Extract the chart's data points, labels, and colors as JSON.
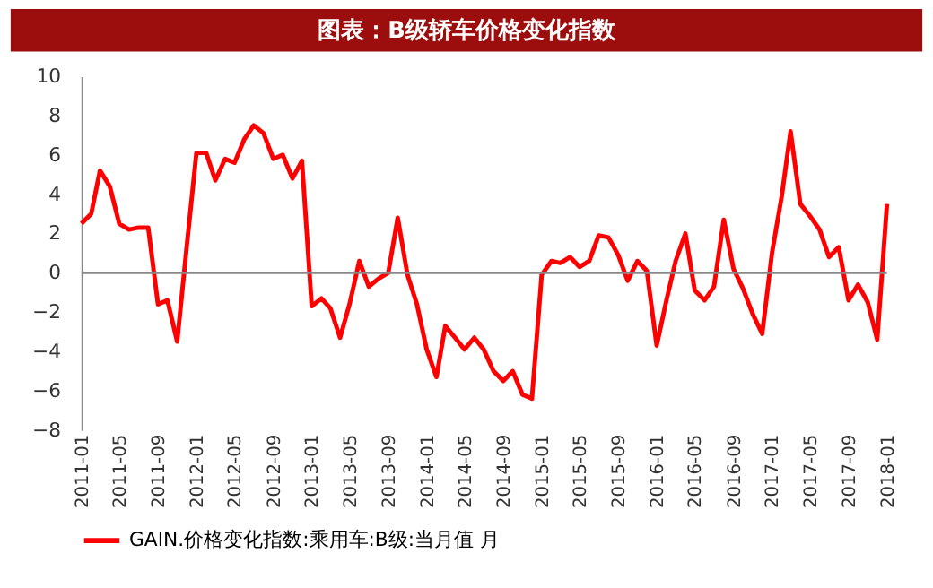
{
  "chart_data": {
    "type": "line",
    "title": "图表：B级轿车价格变化指数",
    "x": [
      "2011-01",
      "2011-02",
      "2011-03",
      "2011-04",
      "2011-05",
      "2011-06",
      "2011-07",
      "2011-08",
      "2011-09",
      "2011-10",
      "2011-11",
      "2011-12",
      "2012-01",
      "2012-02",
      "2012-03",
      "2012-04",
      "2012-05",
      "2012-06",
      "2012-07",
      "2012-08",
      "2012-09",
      "2012-10",
      "2012-11",
      "2012-12",
      "2013-01",
      "2013-02",
      "2013-03",
      "2013-04",
      "2013-05",
      "2013-06",
      "2013-07",
      "2013-08",
      "2013-09",
      "2013-10",
      "2013-11",
      "2013-12",
      "2014-01",
      "2014-02",
      "2014-03",
      "2014-04",
      "2014-05",
      "2014-06",
      "2014-07",
      "2014-08",
      "2014-09",
      "2014-10",
      "2014-11",
      "2014-12",
      "2015-01",
      "2015-02",
      "2015-03",
      "2015-04",
      "2015-05",
      "2015-06",
      "2015-07",
      "2015-08",
      "2015-09",
      "2015-10",
      "2015-11",
      "2015-12",
      "2016-01",
      "2016-02",
      "2016-03",
      "2016-04",
      "2016-05",
      "2016-06",
      "2016-07",
      "2016-08",
      "2016-09",
      "2016-10",
      "2016-11",
      "2016-12",
      "2017-01",
      "2017-02",
      "2017-03",
      "2017-04",
      "2017-05",
      "2017-06",
      "2017-07",
      "2017-08",
      "2017-09",
      "2017-10",
      "2017-11",
      "2017-12",
      "2018-01"
    ],
    "series": [
      {
        "name": "GAIN.价格变化指数:乘用车:B级:当月值 月",
        "color": "#ff0000",
        "values": [
          2.5,
          3.0,
          5.2,
          4.4,
          2.5,
          2.2,
          2.3,
          2.3,
          -1.6,
          -1.4,
          -3.5,
          1.3,
          6.1,
          6.1,
          4.7,
          5.8,
          5.6,
          6.8,
          7.5,
          7.1,
          5.8,
          6.0,
          4.8,
          5.7,
          -1.7,
          -1.3,
          -1.8,
          -3.3,
          -1.6,
          0.6,
          -0.7,
          -0.3,
          0.0,
          2.8,
          -0.1,
          -1.6,
          -3.9,
          -5.3,
          -2.7,
          -3.3,
          -3.9,
          -3.3,
          -3.9,
          -5.0,
          -5.5,
          -5.0,
          -6.2,
          -6.4,
          -0.1,
          0.6,
          0.5,
          0.8,
          0.3,
          0.6,
          1.9,
          1.8,
          0.9,
          -0.4,
          0.6,
          0.1,
          -3.7,
          -1.4,
          0.6,
          2.0,
          -0.9,
          -1.4,
          -0.7,
          2.7,
          0.2,
          -0.8,
          -2.1,
          -3.1,
          1.0,
          3.9,
          7.2,
          3.5,
          2.9,
          2.2,
          0.8,
          1.3,
          -1.4,
          -0.6,
          -1.5,
          -3.4,
          3.5
        ]
      }
    ],
    "xlim": [
      "2011-01",
      "2018-01"
    ],
    "xticks": [
      "2011-01",
      "2011-05",
      "2011-09",
      "2012-01",
      "2012-05",
      "2012-09",
      "2013-01",
      "2013-05",
      "2013-09",
      "2014-01",
      "2014-05",
      "2014-09",
      "2015-01",
      "2015-05",
      "2015-09",
      "2016-01",
      "2016-05",
      "2016-09",
      "2017-01",
      "2017-05",
      "2017-09",
      "2018-01"
    ],
    "ylim": [
      -8,
      10
    ],
    "yticks": [
      -8,
      -6,
      -4,
      -2,
      0,
      2,
      4,
      6,
      8,
      10
    ],
    "ref_lines": [
      {
        "axis": "y",
        "value": 0,
        "color": "#888888"
      }
    ],
    "grid": false,
    "legend": "bottom",
    "marker": "none",
    "line_style": "solid"
  }
}
